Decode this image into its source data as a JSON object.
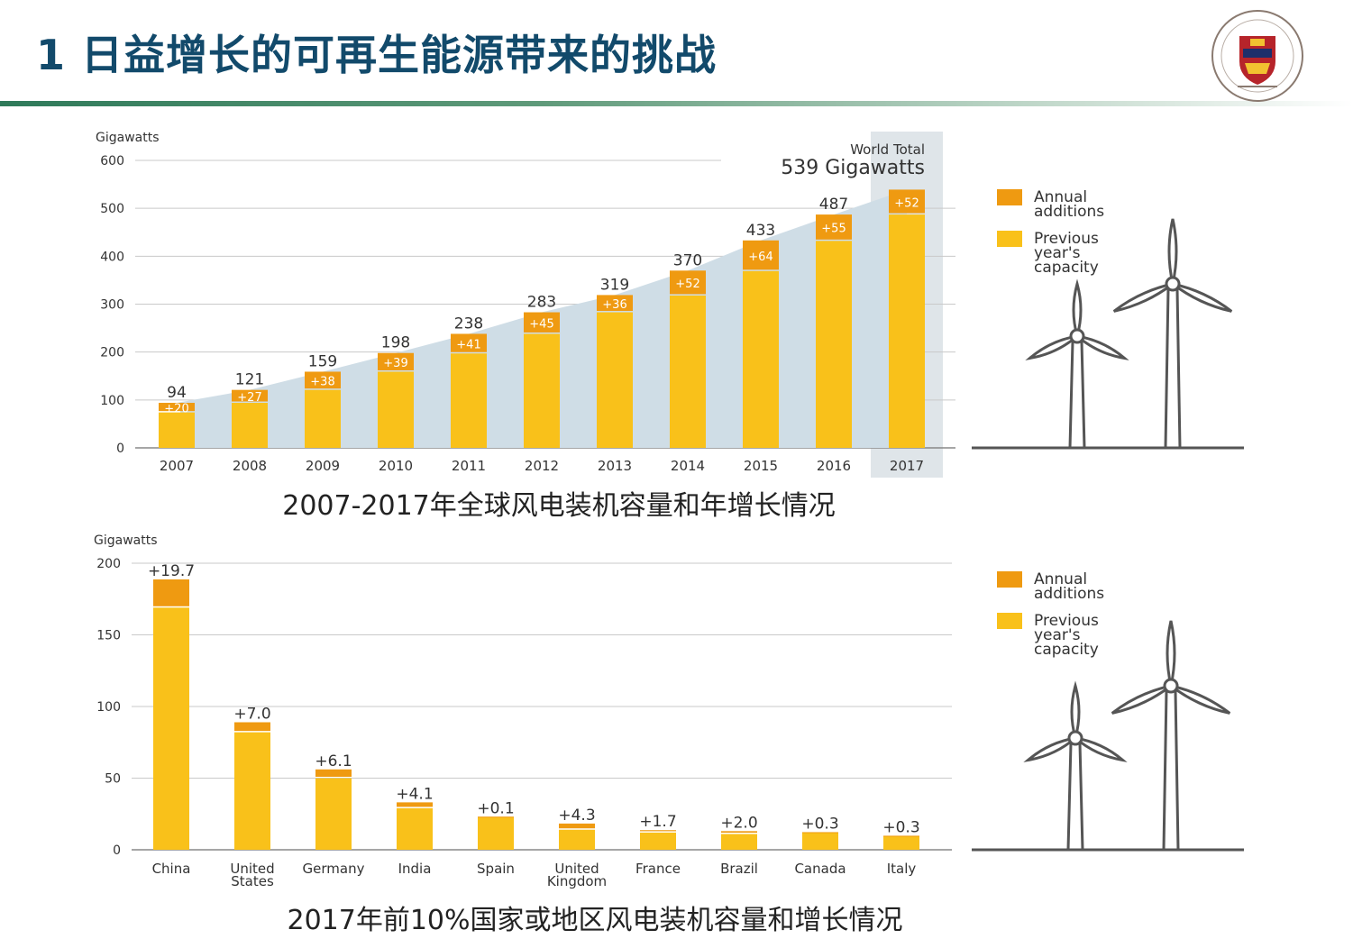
{
  "page": {
    "title": "1 日益增长的可再生能源带来的挑战"
  },
  "colors": {
    "annual_additions": "#ef9a11",
    "previous_capacity": "#f9c11a",
    "area_fill": "#cfdde6",
    "highlight_band": "#dfe5e9",
    "title_text": "#124a6b",
    "axis_text": "#333333"
  },
  "chart_data": [
    {
      "type": "bar",
      "stacked": true,
      "ylabel": "Gigawatts",
      "ylim": [
        0,
        600
      ],
      "yticks": [
        0,
        100,
        200,
        300,
        400,
        500,
        600
      ],
      "grid": true,
      "categories": [
        "2007",
        "2008",
        "2009",
        "2010",
        "2011",
        "2012",
        "2013",
        "2014",
        "2015",
        "2016",
        "2017"
      ],
      "totals": [
        94,
        121,
        159,
        198,
        238,
        283,
        319,
        370,
        433,
        487,
        539
      ],
      "series": [
        {
          "name": "Previous year's capacity",
          "values": [
            74,
            94,
            121,
            159,
            197,
            238,
            283,
            318,
            369,
            432,
            487
          ]
        },
        {
          "name": "Annual additions",
          "values": [
            20,
            27,
            38,
            39,
            41,
            45,
            36,
            52,
            64,
            55,
            52
          ]
        }
      ],
      "total_labels": [
        "94",
        "121",
        "159",
        "198",
        "238",
        "283",
        "319",
        "370",
        "433",
        "487",
        ""
      ],
      "addition_labels": [
        "+20",
        "+27",
        "+38",
        "+39",
        "+41",
        "+45",
        "+36",
        "+52",
        "+64",
        "+55",
        "+52"
      ],
      "world_total_label": "World Total",
      "world_total_value": "539 Gigawatts",
      "highlight_category": "2017",
      "legend": {
        "position": "right",
        "entries": [
          "Annual additions",
          "Previous year's capacity"
        ]
      },
      "caption": "2007-2017年全球风电装机容量和年增长情况"
    },
    {
      "type": "bar",
      "stacked": true,
      "ylabel": "Gigawatts",
      "ylim": [
        0,
        200
      ],
      "yticks": [
        0,
        50,
        100,
        150,
        200
      ],
      "grid": true,
      "categories": [
        "China",
        "United States",
        "Germany",
        "India",
        "Spain",
        "United Kingdom",
        "France",
        "Brazil",
        "Canada",
        "Italy"
      ],
      "category_lines": [
        [
          "China"
        ],
        [
          "United",
          "States"
        ],
        [
          "Germany"
        ],
        [
          "India"
        ],
        [
          "Spain"
        ],
        [
          "United",
          "Kingdom"
        ],
        [
          "France"
        ],
        [
          "Brazil"
        ],
        [
          "Canada"
        ],
        [
          "Italy"
        ]
      ],
      "series": [
        {
          "name": "Previous year's capacity",
          "values": [
            169,
            82,
            50,
            29,
            23,
            14,
            12,
            11,
            12,
            9.5
          ]
        },
        {
          "name": "Annual additions",
          "values": [
            19.7,
            7.0,
            6.1,
            4.1,
            0.1,
            4.3,
            1.7,
            2.0,
            0.3,
            0.3
          ]
        }
      ],
      "addition_labels": [
        "+19.7",
        "+7.0",
        "+6.1",
        "+4.1",
        "+0.1",
        "+4.3",
        "+1.7",
        "+2.0",
        "+0.3",
        "+0.3"
      ],
      "legend": {
        "position": "right",
        "entries": [
          "Annual additions",
          "Previous year's capacity"
        ]
      },
      "caption": "2017年前10%国家或地区风电装机容量和增长情况"
    }
  ],
  "legend_text": {
    "annual_lines": [
      "Annual",
      "additions"
    ],
    "previous_lines": [
      "Previous",
      "year's",
      "capacity"
    ]
  },
  "icons": [
    "university-seal-icon",
    "wind-turbine-icon"
  ]
}
